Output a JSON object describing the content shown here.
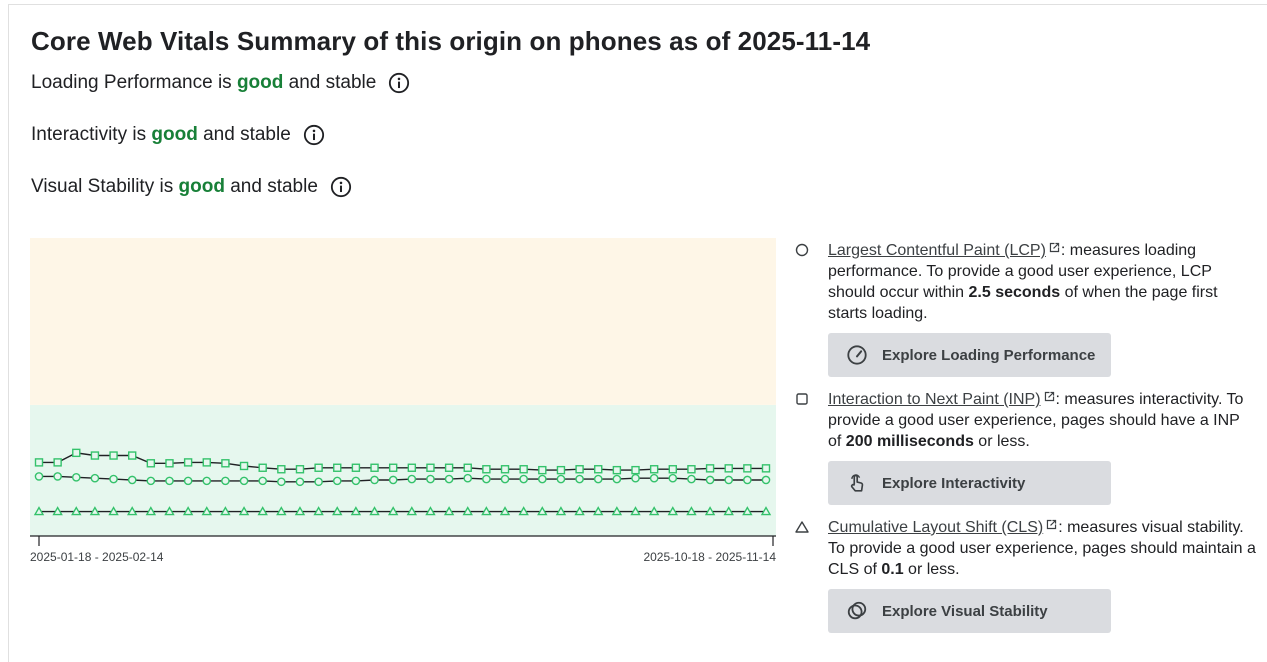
{
  "title": "Core Web Vitals Summary of this origin on phones as of 2025-11-14",
  "status": [
    {
      "prefix": "Loading Performance is ",
      "rating": "good",
      "suffix": " and stable"
    },
    {
      "prefix": "Interactivity is ",
      "rating": "good",
      "suffix": " and stable"
    },
    {
      "prefix": "Visual Stability is ",
      "rating": "good",
      "suffix": " and stable"
    }
  ],
  "colors": {
    "good": "#188038",
    "needs_improvement_band": "#fef6e7",
    "good_band": "#e6f7ee",
    "series_marker": "#34c26b",
    "series_line": "#202124",
    "button_bg": "#dadce0"
  },
  "chart_data": {
    "type": "line",
    "x_tick_labels": [
      "2025-01-18 - 2025-02-14",
      "2025-10-18 - 2025-11-14"
    ],
    "x_count": 40,
    "y_range": [
      0,
      1
    ],
    "bands": [
      {
        "from": 0,
        "to": 0.44,
        "rating": "good"
      },
      {
        "from": 0.44,
        "to": 1,
        "rating": "needs improvement"
      }
    ],
    "series": [
      {
        "marker": "square",
        "values": [
          0.247,
          0.247,
          0.279,
          0.27,
          0.27,
          0.27,
          0.244,
          0.244,
          0.247,
          0.247,
          0.244,
          0.235,
          0.229,
          0.224,
          0.224,
          0.229,
          0.229,
          0.229,
          0.229,
          0.229,
          0.229,
          0.229,
          0.229,
          0.229,
          0.224,
          0.224,
          0.224,
          0.221,
          0.221,
          0.224,
          0.224,
          0.221,
          0.221,
          0.224,
          0.224,
          0.224,
          0.227,
          0.227,
          0.227,
          0.227
        ]
      },
      {
        "marker": "circle",
        "values": [
          0.2,
          0.2,
          0.197,
          0.194,
          0.191,
          0.188,
          0.185,
          0.185,
          0.185,
          0.185,
          0.185,
          0.185,
          0.185,
          0.182,
          0.182,
          0.182,
          0.185,
          0.185,
          0.188,
          0.188,
          0.191,
          0.191,
          0.191,
          0.194,
          0.191,
          0.191,
          0.191,
          0.191,
          0.191,
          0.191,
          0.191,
          0.191,
          0.194,
          0.194,
          0.194,
          0.191,
          0.188,
          0.188,
          0.188,
          0.188
        ]
      },
      {
        "marker": "triangle",
        "values": [
          0.082,
          0.082,
          0.082,
          0.082,
          0.082,
          0.082,
          0.082,
          0.082,
          0.082,
          0.082,
          0.082,
          0.082,
          0.082,
          0.082,
          0.082,
          0.082,
          0.082,
          0.082,
          0.082,
          0.082,
          0.082,
          0.082,
          0.082,
          0.082,
          0.082,
          0.082,
          0.082,
          0.082,
          0.082,
          0.082,
          0.082,
          0.082,
          0.082,
          0.082,
          0.082,
          0.082,
          0.082,
          0.082,
          0.082,
          0.082
        ]
      }
    ]
  },
  "legend": [
    {
      "marker": "circle",
      "link": "Largest Contentful Paint (LCP)",
      "before_bold": ": measures loading performance. To provide a good user experience, LCP should occur within ",
      "bold": "2.5 seconds",
      "after_bold": " of when the page first starts loading.",
      "button": "Explore Loading Performance",
      "button_icon": "speedometer-icon"
    },
    {
      "marker": "square",
      "link": "Interaction to Next Paint (INP)",
      "before_bold": ": measures interactivity. To provide a good user experience, pages should have a INP of ",
      "bold": "200 milliseconds",
      "after_bold": " or less.",
      "button": "Explore Interactivity",
      "button_icon": "touch-pointer-icon"
    },
    {
      "marker": "triangle",
      "link": "Cumulative Layout Shift (CLS)",
      "before_bold": ": measures visual stability. To provide a good user experience, pages should maintain a CLS of ",
      "bold": "0.1",
      "after_bold": " or less.",
      "button": "Explore Visual Stability",
      "button_icon": "overlapping-circles-icon"
    }
  ]
}
